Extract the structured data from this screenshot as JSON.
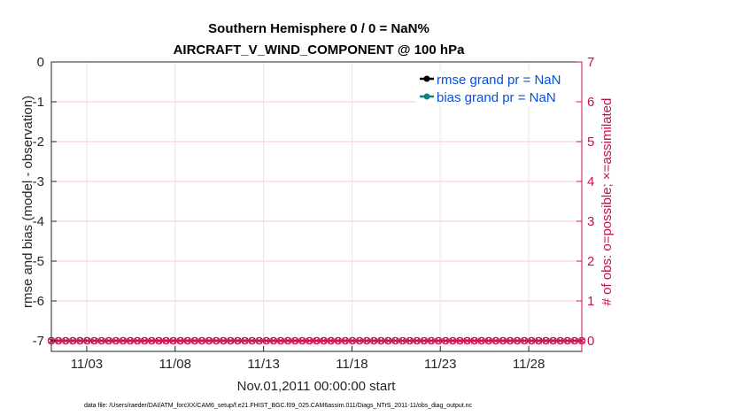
{
  "chart_data": {
    "type": "line",
    "title": [
      "Southern Hemisphere 0 / 0 = NaN%",
      "AIRCRAFT_V_WIND_COMPONENT @ 100 hPa"
    ],
    "xlabel": "Nov.01,2011 00:00:00 start",
    "ylabel_left": "rmse and bias (model - observation)",
    "ylabel_right": "# of obs: o=possible; ×=assimilated",
    "ylim_left": [
      -7,
      0
    ],
    "ylim_right": [
      0,
      7
    ],
    "yticks_left": [
      "0",
      "-1",
      "-2",
      "-3",
      "-4",
      "-5",
      "-6",
      "-7"
    ],
    "yticks_right": [
      "7",
      "6",
      "5",
      "4",
      "3",
      "2",
      "1",
      "0"
    ],
    "x_range_days": [
      1,
      31
    ],
    "xticks": [
      {
        "day": 3,
        "label": "11/03"
      },
      {
        "day": 8,
        "label": "11/08"
      },
      {
        "day": 13,
        "label": "11/13"
      },
      {
        "day": 18,
        "label": "11/18"
      },
      {
        "day": 23,
        "label": "11/23"
      },
      {
        "day": 28,
        "label": "11/28"
      }
    ],
    "grid": true,
    "legend_position": "top-right",
    "series": [
      {
        "name": "rmse grand pr = NaN",
        "color": "#000000",
        "values": []
      },
      {
        "name": "bias grand pr = NaN",
        "color": "#0f7f7f",
        "values": []
      },
      {
        "name": "",
        "color": "#c8104f",
        "axis": "right",
        "marker": "o",
        "x_start": 1,
        "x_end": 31,
        "value": 0
      },
      {
        "name": "",
        "color": "#c8104f",
        "axis": "right",
        "marker": "x",
        "x_start": 1,
        "x_end": 31,
        "value": 0
      }
    ],
    "footnote": "data file: /Users/raeder/DAI/ATM_forcXX/CAM6_setup/f.e21.FHIST_BGC.f09_025.CAM6assim.011/Diags_NTrS_2011-11/obs_diag_output.nc"
  },
  "colors": {
    "right_axis": "#c8104f",
    "legend_text": "#0a4fd6",
    "grid": "#e6e6e6",
    "right_grid": "#f5c9d6"
  }
}
